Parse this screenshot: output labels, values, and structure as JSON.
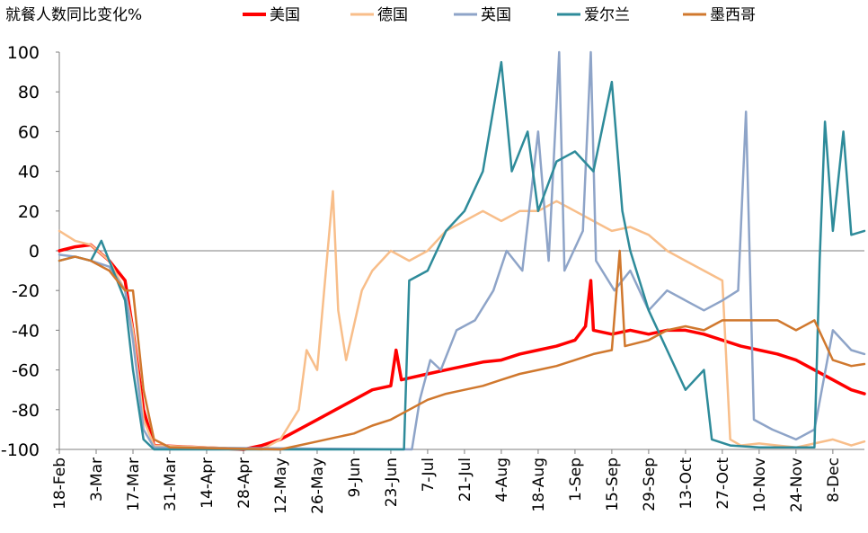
{
  "chart_data": {
    "type": "line",
    "title": "就餐人数同比变化%",
    "ylim": [
      -100,
      100
    ],
    "yticks": [
      100,
      80,
      60,
      40,
      20,
      0,
      -20,
      -40,
      -60,
      -80,
      -100
    ],
    "xlim": [
      "2020-02-18",
      "2020-12-20"
    ],
    "xticks": [
      "2020-02-18",
      "2020-03-03",
      "2020-03-17",
      "2020-03-31",
      "2020-04-14",
      "2020-04-28",
      "2020-05-12",
      "2020-05-26",
      "2020-06-09",
      "2020-06-23",
      "2020-07-07",
      "2020-07-21",
      "2020-08-04",
      "2020-08-18",
      "2020-09-01",
      "2020-09-15",
      "2020-09-29",
      "2020-10-13",
      "2020-10-27",
      "2020-11-10",
      "2020-11-24",
      "2020-12-08"
    ],
    "xticklabels": [
      "18-Feb",
      "3-Mar",
      "17-Mar",
      "31-Mar",
      "14-Apr",
      "28-Apr",
      "12-May",
      "26-May",
      "9-Jun",
      "23-Jun",
      "7-Jul",
      "21-Jul",
      "4-Aug",
      "18-Aug",
      "1-Sep",
      "15-Sep",
      "29-Sep",
      "13-Oct",
      "27-Oct",
      "10-Nov",
      "24-Nov",
      "8-Dec"
    ],
    "legend_position": "top",
    "grid": false,
    "series": [
      {
        "name": "美国",
        "color": "#FF0000",
        "points": [
          [
            "2020-02-18",
            0
          ],
          [
            "2020-02-24",
            2
          ],
          [
            "2020-03-01",
            3
          ],
          [
            "2020-03-08",
            -5
          ],
          [
            "2020-03-14",
            -15
          ],
          [
            "2020-03-17",
            -40
          ],
          [
            "2020-03-21",
            -80
          ],
          [
            "2020-03-25",
            -98
          ],
          [
            "2020-04-28",
            -100
          ],
          [
            "2020-05-05",
            -98
          ],
          [
            "2020-05-12",
            -95
          ],
          [
            "2020-05-19",
            -90
          ],
          [
            "2020-05-26",
            -85
          ],
          [
            "2020-06-02",
            -80
          ],
          [
            "2020-06-09",
            -75
          ],
          [
            "2020-06-16",
            -70
          ],
          [
            "2020-06-23",
            -68
          ],
          [
            "2020-06-25",
            -50
          ],
          [
            "2020-06-27",
            -65
          ],
          [
            "2020-07-07",
            -62
          ],
          [
            "2020-07-14",
            -60
          ],
          [
            "2020-07-21",
            -58
          ],
          [
            "2020-07-28",
            -56
          ],
          [
            "2020-08-04",
            -55
          ],
          [
            "2020-08-11",
            -52
          ],
          [
            "2020-08-18",
            -50
          ],
          [
            "2020-08-25",
            -48
          ],
          [
            "2020-09-01",
            -45
          ],
          [
            "2020-09-05",
            -38
          ],
          [
            "2020-09-07",
            -15
          ],
          [
            "2020-09-08",
            -40
          ],
          [
            "2020-09-15",
            -42
          ],
          [
            "2020-09-22",
            -40
          ],
          [
            "2020-09-29",
            -42
          ],
          [
            "2020-10-06",
            -40
          ],
          [
            "2020-10-13",
            -40
          ],
          [
            "2020-10-20",
            -42
          ],
          [
            "2020-10-27",
            -45
          ],
          [
            "2020-11-03",
            -48
          ],
          [
            "2020-11-10",
            -50
          ],
          [
            "2020-11-17",
            -52
          ],
          [
            "2020-11-24",
            -55
          ],
          [
            "2020-12-01",
            -60
          ],
          [
            "2020-12-08",
            -65
          ],
          [
            "2020-12-15",
            -70
          ],
          [
            "2020-12-20",
            -72
          ]
        ]
      },
      {
        "name": "德国",
        "color": "#F8BE8A",
        "points": [
          [
            "2020-02-18",
            10
          ],
          [
            "2020-02-24",
            5
          ],
          [
            "2020-03-01",
            3
          ],
          [
            "2020-03-08",
            -5
          ],
          [
            "2020-03-14",
            -20
          ],
          [
            "2020-03-17",
            -40
          ],
          [
            "2020-03-21",
            -85
          ],
          [
            "2020-03-25",
            -98
          ],
          [
            "2020-05-05",
            -100
          ],
          [
            "2020-05-12",
            -95
          ],
          [
            "2020-05-19",
            -80
          ],
          [
            "2020-05-22",
            -50
          ],
          [
            "2020-05-26",
            -60
          ],
          [
            "2020-06-01",
            30
          ],
          [
            "2020-06-03",
            -30
          ],
          [
            "2020-06-06",
            -55
          ],
          [
            "2020-06-12",
            -20
          ],
          [
            "2020-06-16",
            -10
          ],
          [
            "2020-06-23",
            0
          ],
          [
            "2020-06-30",
            -5
          ],
          [
            "2020-07-07",
            0
          ],
          [
            "2020-07-14",
            10
          ],
          [
            "2020-07-21",
            15
          ],
          [
            "2020-07-28",
            20
          ],
          [
            "2020-08-04",
            15
          ],
          [
            "2020-08-11",
            20
          ],
          [
            "2020-08-18",
            20
          ],
          [
            "2020-08-25",
            25
          ],
          [
            "2020-09-01",
            20
          ],
          [
            "2020-09-08",
            15
          ],
          [
            "2020-09-15",
            10
          ],
          [
            "2020-09-22",
            12
          ],
          [
            "2020-09-29",
            8
          ],
          [
            "2020-10-06",
            0
          ],
          [
            "2020-10-13",
            -5
          ],
          [
            "2020-10-20",
            -10
          ],
          [
            "2020-10-27",
            -15
          ],
          [
            "2020-10-30",
            -95
          ],
          [
            "2020-11-03",
            -98
          ],
          [
            "2020-11-10",
            -97
          ],
          [
            "2020-11-17",
            -98
          ],
          [
            "2020-11-24",
            -99
          ],
          [
            "2020-12-01",
            -97
          ],
          [
            "2020-12-08",
            -95
          ],
          [
            "2020-12-15",
            -98
          ],
          [
            "2020-12-20",
            -96
          ]
        ]
      },
      {
        "name": "英国",
        "color": "#8EA4C8",
        "points": [
          [
            "2020-02-18",
            -2
          ],
          [
            "2020-02-24",
            -3
          ],
          [
            "2020-03-01",
            -5
          ],
          [
            "2020-03-08",
            -8
          ],
          [
            "2020-03-14",
            -20
          ],
          [
            "2020-03-17",
            -45
          ],
          [
            "2020-03-21",
            -90
          ],
          [
            "2020-03-25",
            -99
          ],
          [
            "2020-07-01",
            -100
          ],
          [
            "2020-07-04",
            -75
          ],
          [
            "2020-07-08",
            -55
          ],
          [
            "2020-07-12",
            -60
          ],
          [
            "2020-07-18",
            -40
          ],
          [
            "2020-07-25",
            -35
          ],
          [
            "2020-08-01",
            -20
          ],
          [
            "2020-08-06",
            0
          ],
          [
            "2020-08-12",
            -10
          ],
          [
            "2020-08-18",
            60
          ],
          [
            "2020-08-22",
            -5
          ],
          [
            "2020-08-26",
            100
          ],
          [
            "2020-08-28",
            -10
          ],
          [
            "2020-09-04",
            10
          ],
          [
            "2020-09-07",
            100
          ],
          [
            "2020-09-09",
            -5
          ],
          [
            "2020-09-16",
            -20
          ],
          [
            "2020-09-22",
            -10
          ],
          [
            "2020-09-29",
            -30
          ],
          [
            "2020-10-06",
            -20
          ],
          [
            "2020-10-13",
            -25
          ],
          [
            "2020-10-20",
            -30
          ],
          [
            "2020-10-27",
            -25
          ],
          [
            "2020-11-02",
            -20
          ],
          [
            "2020-11-05",
            70
          ],
          [
            "2020-11-08",
            -85
          ],
          [
            "2020-11-15",
            -90
          ],
          [
            "2020-11-24",
            -95
          ],
          [
            "2020-12-01",
            -90
          ],
          [
            "2020-12-08",
            -40
          ],
          [
            "2020-12-15",
            -50
          ],
          [
            "2020-12-20",
            -52
          ]
        ]
      },
      {
        "name": "爱尔兰",
        "color": "#2E8B9A",
        "points": [
          [
            "2020-02-18",
            -5
          ],
          [
            "2020-02-24",
            -3
          ],
          [
            "2020-03-01",
            -5
          ],
          [
            "2020-03-05",
            5
          ],
          [
            "2020-03-08",
            -5
          ],
          [
            "2020-03-14",
            -25
          ],
          [
            "2020-03-17",
            -60
          ],
          [
            "2020-03-21",
            -95
          ],
          [
            "2020-03-25",
            -100
          ],
          [
            "2020-06-28",
            -100
          ],
          [
            "2020-06-30",
            -15
          ],
          [
            "2020-07-07",
            -10
          ],
          [
            "2020-07-14",
            10
          ],
          [
            "2020-07-21",
            20
          ],
          [
            "2020-07-28",
            40
          ],
          [
            "2020-08-04",
            95
          ],
          [
            "2020-08-08",
            40
          ],
          [
            "2020-08-14",
            60
          ],
          [
            "2020-08-18",
            20
          ],
          [
            "2020-08-25",
            45
          ],
          [
            "2020-09-01",
            50
          ],
          [
            "2020-09-08",
            40
          ],
          [
            "2020-09-15",
            85
          ],
          [
            "2020-09-19",
            20
          ],
          [
            "2020-09-22",
            0
          ],
          [
            "2020-09-29",
            -30
          ],
          [
            "2020-10-06",
            -50
          ],
          [
            "2020-10-13",
            -70
          ],
          [
            "2020-10-20",
            -60
          ],
          [
            "2020-10-23",
            -95
          ],
          [
            "2020-10-30",
            -98
          ],
          [
            "2020-11-10",
            -99
          ],
          [
            "2020-11-24",
            -99
          ],
          [
            "2020-12-01",
            -99
          ],
          [
            "2020-12-03",
            -5
          ],
          [
            "2020-12-05",
            65
          ],
          [
            "2020-12-08",
            10
          ],
          [
            "2020-12-12",
            60
          ],
          [
            "2020-12-15",
            8
          ],
          [
            "2020-12-20",
            10
          ]
        ]
      },
      {
        "name": "墨西哥",
        "color": "#D0782E",
        "points": [
          [
            "2020-02-18",
            -5
          ],
          [
            "2020-02-24",
            -3
          ],
          [
            "2020-03-01",
            -5
          ],
          [
            "2020-03-08",
            -10
          ],
          [
            "2020-03-14",
            -20
          ],
          [
            "2020-03-17",
            -20
          ],
          [
            "2020-03-21",
            -70
          ],
          [
            "2020-03-25",
            -95
          ],
          [
            "2020-03-31",
            -99
          ],
          [
            "2020-05-12",
            -100
          ],
          [
            "2020-05-19",
            -98
          ],
          [
            "2020-05-26",
            -96
          ],
          [
            "2020-06-02",
            -94
          ],
          [
            "2020-06-09",
            -92
          ],
          [
            "2020-06-16",
            -88
          ],
          [
            "2020-06-23",
            -85
          ],
          [
            "2020-06-30",
            -80
          ],
          [
            "2020-07-07",
            -75
          ],
          [
            "2020-07-14",
            -72
          ],
          [
            "2020-07-21",
            -70
          ],
          [
            "2020-07-28",
            -68
          ],
          [
            "2020-08-04",
            -65
          ],
          [
            "2020-08-11",
            -62
          ],
          [
            "2020-08-18",
            -60
          ],
          [
            "2020-08-25",
            -58
          ],
          [
            "2020-09-01",
            -55
          ],
          [
            "2020-09-08",
            -52
          ],
          [
            "2020-09-15",
            -50
          ],
          [
            "2020-09-18",
            0
          ],
          [
            "2020-09-20",
            -48
          ],
          [
            "2020-09-29",
            -45
          ],
          [
            "2020-10-06",
            -40
          ],
          [
            "2020-10-13",
            -38
          ],
          [
            "2020-10-20",
            -40
          ],
          [
            "2020-10-27",
            -35
          ],
          [
            "2020-11-03",
            -35
          ],
          [
            "2020-11-10",
            -35
          ],
          [
            "2020-11-17",
            -35
          ],
          [
            "2020-11-24",
            -40
          ],
          [
            "2020-12-01",
            -35
          ],
          [
            "2020-12-08",
            -55
          ],
          [
            "2020-12-15",
            -58
          ],
          [
            "2020-12-20",
            -57
          ]
        ]
      }
    ]
  }
}
